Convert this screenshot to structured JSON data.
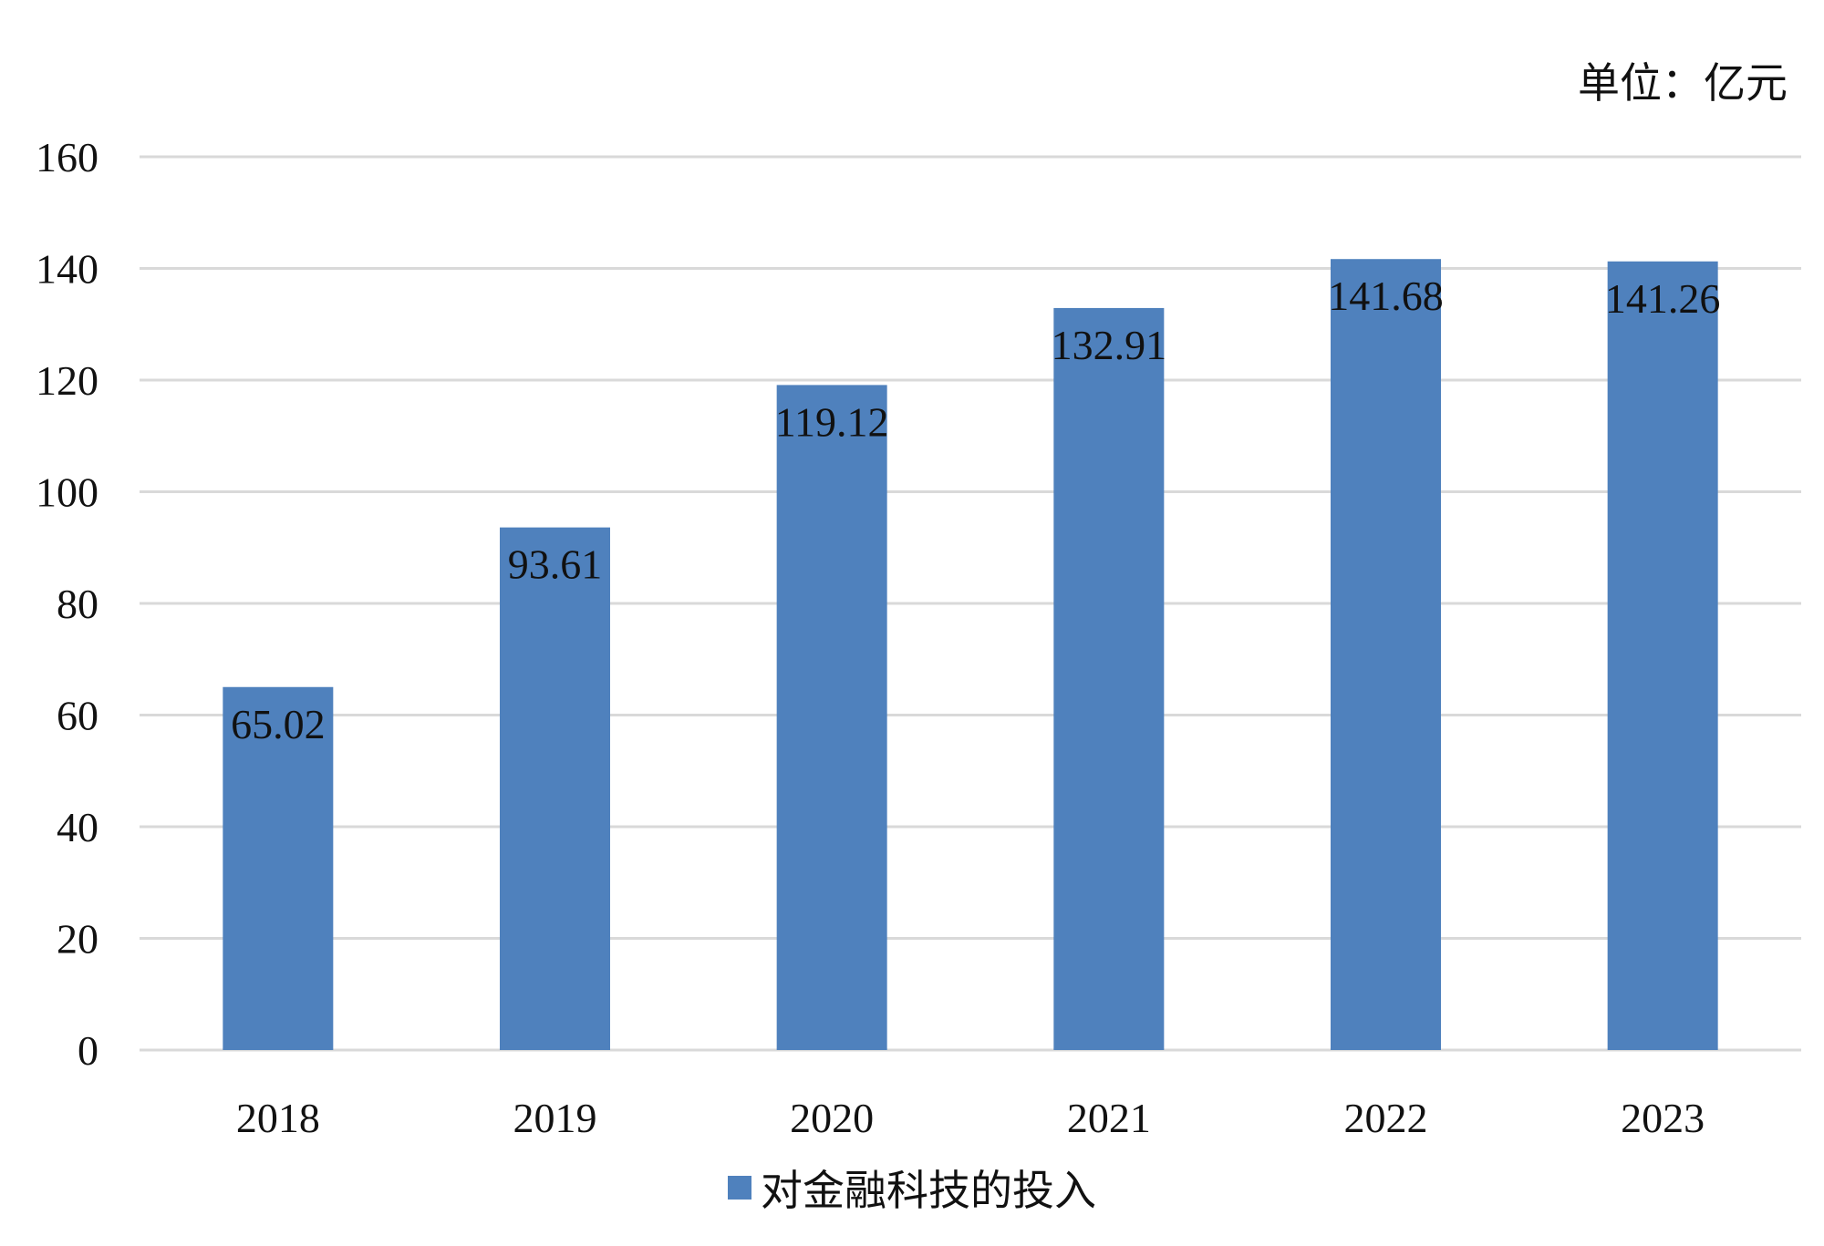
{
  "unit_text": "单位：亿元",
  "legend": {
    "label": "对金融科技的投入",
    "color": "#4F81BD"
  },
  "colors": {
    "bar": "#4F81BD",
    "grid": "#D9D9D9",
    "text": "#111111"
  },
  "chart_data": {
    "type": "bar",
    "categories": [
      "2018",
      "2019",
      "2020",
      "2021",
      "2022",
      "2023"
    ],
    "series": [
      {
        "name": "对金融科技的投入",
        "values": [
          65.02,
          93.61,
          119.12,
          132.91,
          141.68,
          141.26
        ]
      }
    ],
    "data_labels": [
      "65.02",
      "93.61",
      "119.12",
      "132.91",
      "141.68",
      "141.26"
    ],
    "ylim": [
      0,
      160
    ],
    "yticks": [
      "0",
      "20",
      "40",
      "60",
      "80",
      "100",
      "120",
      "140",
      "160"
    ],
    "grid": true,
    "legend_position": "bottom",
    "unit": "单位：亿元"
  }
}
